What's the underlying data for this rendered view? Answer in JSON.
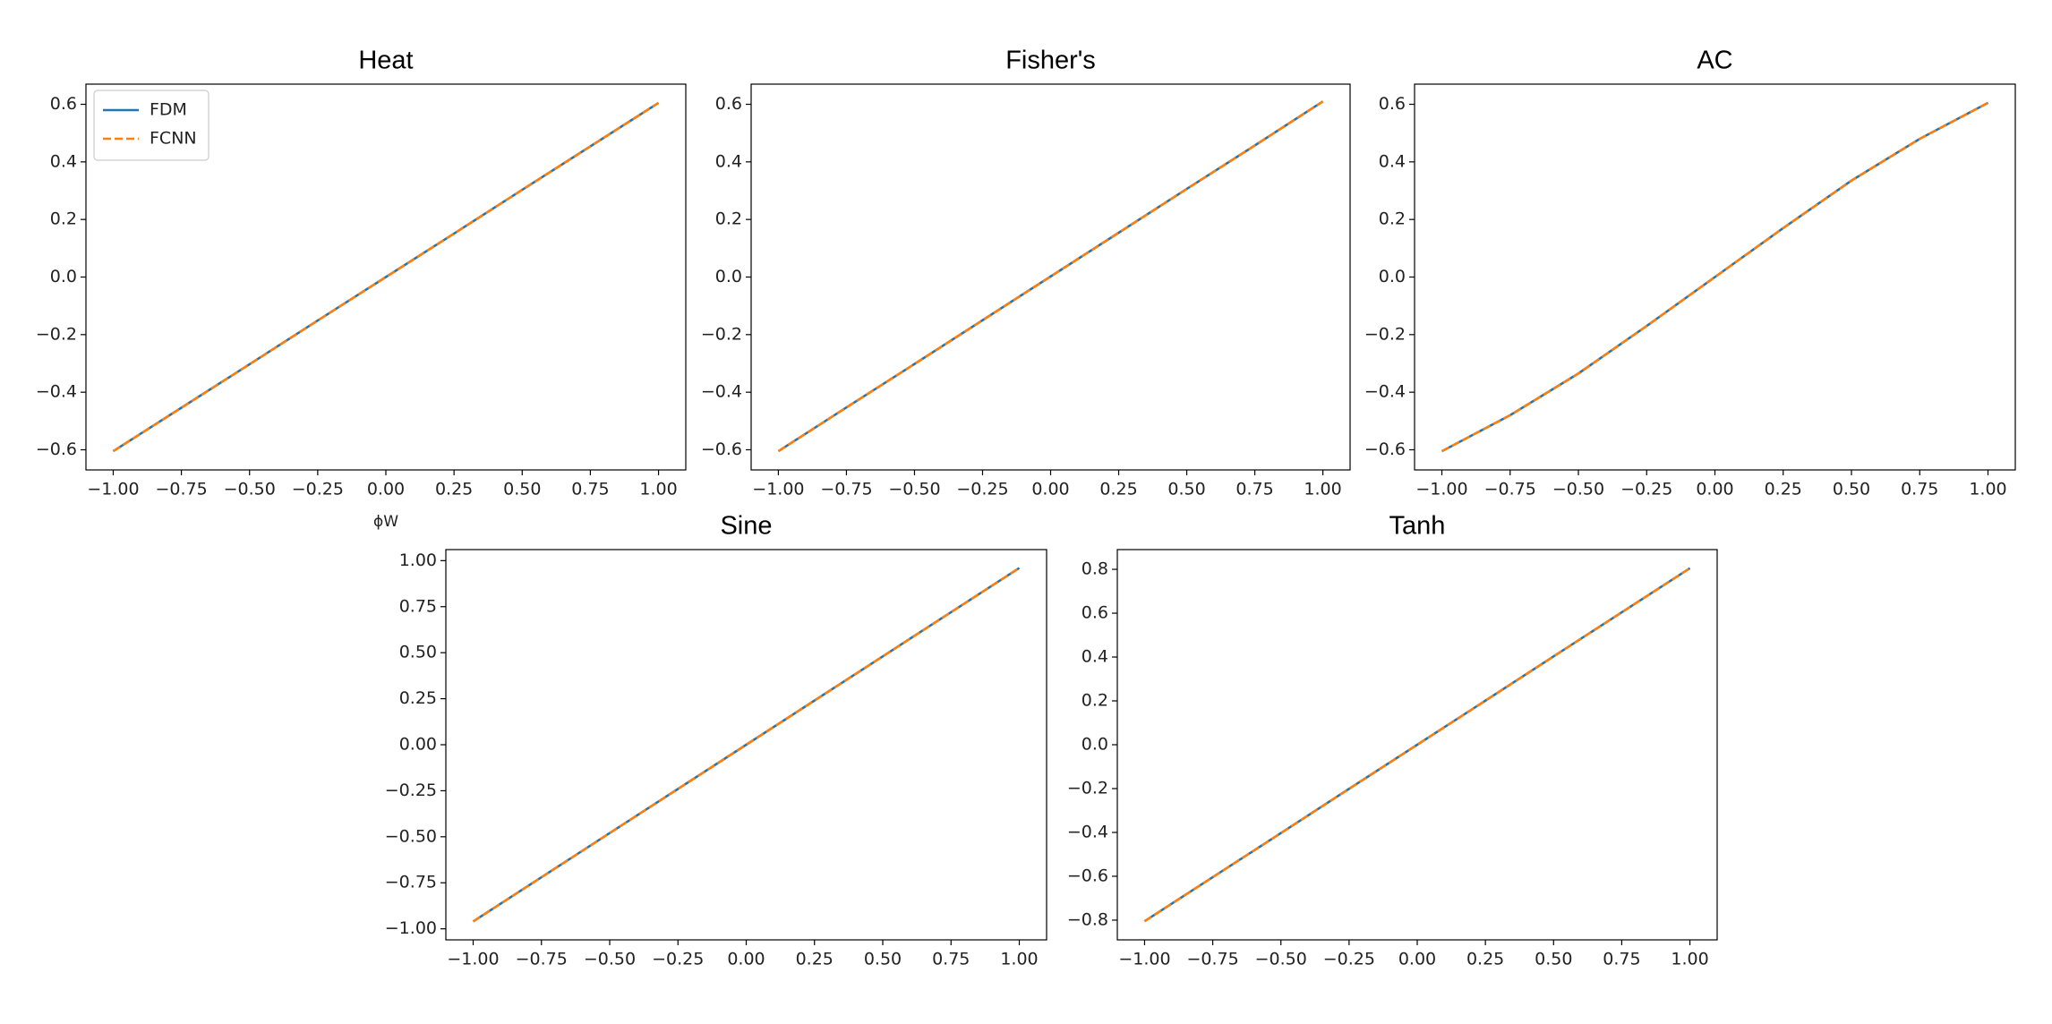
{
  "chart_data": [
    {
      "type": "line",
      "title": "Heat",
      "xlabel": "ϕW",
      "legend": "upper left",
      "x": [
        -1,
        -0.75,
        -0.5,
        -0.25,
        0,
        0.25,
        0.5,
        0.75,
        1
      ],
      "series": [
        {
          "name": "FDM",
          "color": "#1f77b4",
          "values": [
            -0.605,
            -0.454,
            -0.303,
            -0.151,
            0,
            0.151,
            0.303,
            0.454,
            0.605
          ]
        },
        {
          "name": "FCNN",
          "color": "#ff7f0e",
          "dashed": true,
          "values": [
            -0.605,
            -0.454,
            -0.303,
            -0.151,
            0,
            0.151,
            0.303,
            0.454,
            0.605
          ]
        }
      ],
      "xlim": [
        -1.1,
        1.1
      ],
      "ylim": [
        -0.67,
        0.67
      ],
      "xticks": [
        {
          "value": -1,
          "label": "−1.00"
        },
        {
          "value": -0.75,
          "label": "−0.75"
        },
        {
          "value": -0.5,
          "label": "−0.50"
        },
        {
          "value": -0.25,
          "label": "−0.25"
        },
        {
          "value": 0,
          "label": "0.00"
        },
        {
          "value": 0.25,
          "label": "0.25"
        },
        {
          "value": 0.5,
          "label": "0.50"
        },
        {
          "value": 0.75,
          "label": "0.75"
        },
        {
          "value": 1,
          "label": "1.00"
        }
      ],
      "yticks": [
        {
          "value": -0.6,
          "label": "−0.6"
        },
        {
          "value": -0.4,
          "label": "−0.4"
        },
        {
          "value": -0.2,
          "label": "−0.2"
        },
        {
          "value": 0,
          "label": "0.0"
        },
        {
          "value": 0.2,
          "label": "0.2"
        },
        {
          "value": 0.4,
          "label": "0.4"
        },
        {
          "value": 0.6,
          "label": "0.6"
        }
      ]
    },
    {
      "type": "line",
      "title": "Fisher's",
      "x": [
        -1,
        -0.75,
        -0.5,
        -0.25,
        0,
        0.25,
        0.5,
        0.75,
        1
      ],
      "series": [
        {
          "color": "#1f77b4",
          "values": [
            -0.605,
            -0.453,
            -0.302,
            -0.15,
            0.002,
            0.154,
            0.306,
            0.457,
            0.61
          ]
        },
        {
          "color": "#ff7f0e",
          "dashed": true,
          "values": [
            -0.605,
            -0.453,
            -0.302,
            -0.15,
            0.002,
            0.154,
            0.306,
            0.457,
            0.61
          ]
        }
      ],
      "xlim": [
        -1.1,
        1.1
      ],
      "ylim": [
        -0.67,
        0.67
      ],
      "xticks": [
        {
          "value": -1,
          "label": "−1.00"
        },
        {
          "value": -0.75,
          "label": "−0.75"
        },
        {
          "value": -0.5,
          "label": "−0.50"
        },
        {
          "value": -0.25,
          "label": "−0.25"
        },
        {
          "value": 0,
          "label": "0.00"
        },
        {
          "value": 0.25,
          "label": "0.25"
        },
        {
          "value": 0.5,
          "label": "0.50"
        },
        {
          "value": 0.75,
          "label": "0.75"
        },
        {
          "value": 1,
          "label": "1.00"
        }
      ],
      "yticks": [
        {
          "value": -0.6,
          "label": "−0.6"
        },
        {
          "value": -0.4,
          "label": "−0.4"
        },
        {
          "value": -0.2,
          "label": "−0.2"
        },
        {
          "value": 0,
          "label": "0.0"
        },
        {
          "value": 0.2,
          "label": "0.2"
        },
        {
          "value": 0.4,
          "label": "0.4"
        },
        {
          "value": 0.6,
          "label": "0.6"
        }
      ]
    },
    {
      "type": "line",
      "title": "AC",
      "x": [
        -1,
        -0.75,
        -0.5,
        -0.25,
        0,
        0.25,
        0.5,
        0.75,
        1
      ],
      "series": [
        {
          "color": "#1f77b4",
          "values": [
            -0.605,
            -0.48,
            -0.335,
            -0.17,
            0,
            0.17,
            0.335,
            0.48,
            0.605
          ]
        },
        {
          "color": "#ff7f0e",
          "dashed": true,
          "values": [
            -0.605,
            -0.48,
            -0.335,
            -0.17,
            0,
            0.17,
            0.335,
            0.48,
            0.605
          ]
        }
      ],
      "xlim": [
        -1.1,
        1.1
      ],
      "ylim": [
        -0.67,
        0.67
      ],
      "xticks": [
        {
          "value": -1,
          "label": "−1.00"
        },
        {
          "value": -0.75,
          "label": "−0.75"
        },
        {
          "value": -0.5,
          "label": "−0.50"
        },
        {
          "value": -0.25,
          "label": "−0.25"
        },
        {
          "value": 0,
          "label": "0.00"
        },
        {
          "value": 0.25,
          "label": "0.25"
        },
        {
          "value": 0.5,
          "label": "0.50"
        },
        {
          "value": 0.75,
          "label": "0.75"
        },
        {
          "value": 1,
          "label": "1.00"
        }
      ],
      "yticks": [
        {
          "value": -0.6,
          "label": "−0.6"
        },
        {
          "value": -0.4,
          "label": "−0.4"
        },
        {
          "value": -0.2,
          "label": "−0.2"
        },
        {
          "value": 0,
          "label": "0.0"
        },
        {
          "value": 0.2,
          "label": "0.2"
        },
        {
          "value": 0.4,
          "label": "0.4"
        },
        {
          "value": 0.6,
          "label": "0.6"
        }
      ]
    },
    {
      "type": "line",
      "title": "Sine",
      "x": [
        -1,
        -0.75,
        -0.5,
        -0.25,
        0,
        0.25,
        0.5,
        0.75,
        1
      ],
      "series": [
        {
          "color": "#1f77b4",
          "values": [
            -0.96,
            -0.72,
            -0.48,
            -0.24,
            0,
            0.24,
            0.48,
            0.72,
            0.96
          ]
        },
        {
          "color": "#ff7f0e",
          "dashed": true,
          "values": [
            -0.96,
            -0.72,
            -0.48,
            -0.24,
            0,
            0.24,
            0.48,
            0.72,
            0.96
          ]
        }
      ],
      "xlim": [
        -1.1,
        1.1
      ],
      "ylim": [
        -1.06,
        1.06
      ],
      "xticks": [
        {
          "value": -1,
          "label": "−1.00"
        },
        {
          "value": -0.75,
          "label": "−0.75"
        },
        {
          "value": -0.5,
          "label": "−0.50"
        },
        {
          "value": -0.25,
          "label": "−0.25"
        },
        {
          "value": 0,
          "label": "0.00"
        },
        {
          "value": 0.25,
          "label": "0.25"
        },
        {
          "value": 0.5,
          "label": "0.50"
        },
        {
          "value": 0.75,
          "label": "0.75"
        },
        {
          "value": 1,
          "label": "1.00"
        }
      ],
      "yticks": [
        {
          "value": -1,
          "label": "−1.00"
        },
        {
          "value": -0.75,
          "label": "−0.75"
        },
        {
          "value": -0.5,
          "label": "−0.50"
        },
        {
          "value": -0.25,
          "label": "−0.25"
        },
        {
          "value": 0,
          "label": "0.00"
        },
        {
          "value": 0.25,
          "label": "0.25"
        },
        {
          "value": 0.5,
          "label": "0.50"
        },
        {
          "value": 0.75,
          "label": "0.75"
        },
        {
          "value": 1,
          "label": "1.00"
        }
      ]
    },
    {
      "type": "line",
      "title": "Tanh",
      "x": [
        -1,
        -0.75,
        -0.5,
        -0.25,
        0,
        0.25,
        0.5,
        0.75,
        1
      ],
      "series": [
        {
          "color": "#1f77b4",
          "values": [
            -0.805,
            -0.604,
            -0.403,
            -0.201,
            0,
            0.201,
            0.403,
            0.604,
            0.805
          ]
        },
        {
          "color": "#ff7f0e",
          "dashed": true,
          "values": [
            -0.805,
            -0.604,
            -0.403,
            -0.201,
            0,
            0.201,
            0.403,
            0.604,
            0.805
          ]
        }
      ],
      "xlim": [
        -1.1,
        1.1
      ],
      "ylim": [
        -0.89,
        0.89
      ],
      "xticks": [
        {
          "value": -1,
          "label": "−1.00"
        },
        {
          "value": -0.75,
          "label": "−0.75"
        },
        {
          "value": -0.5,
          "label": "−0.50"
        },
        {
          "value": -0.25,
          "label": "−0.25"
        },
        {
          "value": 0,
          "label": "0.00"
        },
        {
          "value": 0.25,
          "label": "0.25"
        },
        {
          "value": 0.5,
          "label": "0.50"
        },
        {
          "value": 0.75,
          "label": "0.75"
        },
        {
          "value": 1,
          "label": "1.00"
        }
      ],
      "yticks": [
        {
          "value": -0.8,
          "label": "−0.8"
        },
        {
          "value": -0.6,
          "label": "−0.6"
        },
        {
          "value": -0.4,
          "label": "−0.4"
        },
        {
          "value": -0.2,
          "label": "−0.2"
        },
        {
          "value": 0,
          "label": "0.0"
        },
        {
          "value": 0.2,
          "label": "0.2"
        },
        {
          "value": 0.4,
          "label": "0.4"
        },
        {
          "value": 0.6,
          "label": "0.6"
        },
        {
          "value": 0.8,
          "label": "0.8"
        }
      ]
    }
  ]
}
